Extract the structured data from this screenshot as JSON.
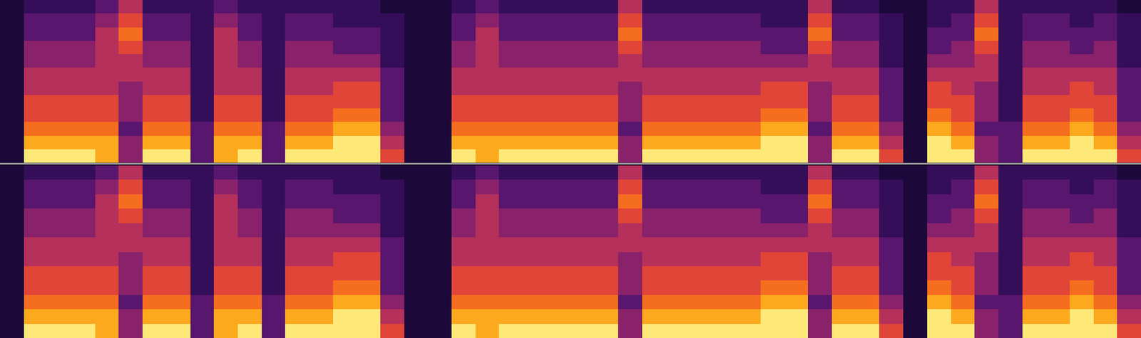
{
  "chart_data": [
    {
      "type": "heatmap",
      "tick_labels": false,
      "zlim": [
        0,
        9
      ],
      "cells": [
        [
          1,
          2,
          2,
          2,
          3,
          5,
          2,
          2,
          2,
          3,
          2,
          2,
          2,
          2,
          2,
          2,
          1,
          1,
          1,
          2,
          3,
          2,
          2,
          2,
          2,
          2,
          5,
          2,
          2,
          2,
          2,
          2,
          2,
          2,
          5,
          2,
          2,
          1,
          1,
          2,
          2,
          5,
          2,
          2,
          2,
          2,
          2,
          1
        ],
        [
          1,
          3,
          3,
          3,
          4,
          6,
          3,
          3,
          2,
          4,
          3,
          2,
          3,
          3,
          2,
          2,
          2,
          1,
          1,
          3,
          4,
          3,
          3,
          3,
          3,
          3,
          6,
          3,
          3,
          3,
          3,
          3,
          2,
          2,
          6,
          3,
          3,
          2,
          1,
          2,
          3,
          6,
          2,
          3,
          3,
          2,
          3,
          2
        ],
        [
          1,
          3,
          3,
          3,
          5,
          7,
          3,
          3,
          2,
          5,
          3,
          2,
          3,
          3,
          3,
          3,
          2,
          1,
          1,
          3,
          5,
          3,
          3,
          3,
          3,
          3,
          7,
          3,
          3,
          3,
          3,
          3,
          3,
          3,
          7,
          3,
          3,
          2,
          1,
          3,
          3,
          7,
          2,
          3,
          3,
          3,
          3,
          2
        ],
        [
          1,
          4,
          4,
          4,
          5,
          6,
          4,
          4,
          2,
          5,
          4,
          2,
          4,
          4,
          3,
          3,
          2,
          1,
          1,
          4,
          5,
          4,
          4,
          4,
          4,
          4,
          6,
          4,
          4,
          4,
          4,
          4,
          3,
          3,
          6,
          4,
          4,
          2,
          1,
          3,
          4,
          6,
          2,
          4,
          4,
          3,
          4,
          2
        ],
        [
          1,
          4,
          4,
          4,
          5,
          5,
          4,
          4,
          2,
          5,
          4,
          2,
          4,
          4,
          4,
          4,
          2,
          1,
          1,
          4,
          5,
          4,
          4,
          4,
          4,
          4,
          5,
          4,
          4,
          4,
          4,
          4,
          4,
          4,
          5,
          4,
          4,
          2,
          1,
          4,
          4,
          5,
          2,
          4,
          4,
          4,
          4,
          2
        ],
        [
          1,
          5,
          5,
          5,
          5,
          5,
          5,
          5,
          2,
          5,
          5,
          2,
          5,
          5,
          5,
          5,
          3,
          1,
          1,
          5,
          5,
          5,
          5,
          5,
          5,
          5,
          5,
          5,
          5,
          5,
          5,
          5,
          5,
          5,
          5,
          5,
          5,
          3,
          1,
          5,
          5,
          5,
          2,
          5,
          5,
          5,
          5,
          3
        ],
        [
          1,
          5,
          5,
          5,
          5,
          4,
          5,
          5,
          2,
          5,
          5,
          2,
          5,
          5,
          6,
          6,
          3,
          1,
          1,
          5,
          5,
          5,
          5,
          5,
          5,
          5,
          4,
          5,
          5,
          5,
          5,
          5,
          6,
          6,
          4,
          5,
          5,
          3,
          1,
          6,
          5,
          4,
          2,
          5,
          5,
          6,
          5,
          3
        ],
        [
          1,
          6,
          6,
          6,
          6,
          4,
          6,
          6,
          2,
          6,
          6,
          2,
          6,
          6,
          6,
          6,
          3,
          1,
          1,
          6,
          6,
          6,
          6,
          6,
          6,
          6,
          4,
          6,
          6,
          6,
          6,
          6,
          6,
          6,
          4,
          6,
          6,
          3,
          1,
          6,
          6,
          4,
          2,
          6,
          6,
          6,
          6,
          3
        ],
        [
          1,
          6,
          6,
          6,
          6,
          4,
          6,
          6,
          2,
          6,
          6,
          2,
          6,
          6,
          7,
          7,
          3,
          1,
          1,
          6,
          6,
          6,
          6,
          6,
          6,
          6,
          4,
          6,
          6,
          6,
          6,
          6,
          7,
          7,
          4,
          6,
          6,
          3,
          1,
          7,
          6,
          4,
          2,
          6,
          6,
          7,
          6,
          3
        ],
        [
          1,
          7,
          7,
          7,
          7,
          3,
          7,
          7,
          3,
          7,
          7,
          3,
          7,
          7,
          8,
          8,
          4,
          1,
          1,
          7,
          7,
          7,
          7,
          7,
          7,
          7,
          3,
          7,
          7,
          7,
          7,
          7,
          8,
          8,
          3,
          7,
          7,
          4,
          1,
          8,
          7,
          3,
          3,
          7,
          7,
          8,
          7,
          4
        ],
        [
          1,
          8,
          8,
          8,
          8,
          4,
          8,
          8,
          3,
          8,
          8,
          3,
          8,
          8,
          9,
          9,
          5,
          1,
          1,
          8,
          8,
          8,
          8,
          8,
          8,
          8,
          4,
          8,
          8,
          8,
          8,
          8,
          9,
          9,
          4,
          8,
          8,
          5,
          1,
          9,
          8,
          4,
          3,
          8,
          8,
          9,
          8,
          5
        ],
        [
          1,
          9,
          9,
          9,
          8,
          4,
          9,
          9,
          3,
          8,
          9,
          3,
          9,
          9,
          9,
          9,
          6,
          1,
          1,
          9,
          8,
          9,
          9,
          9,
          9,
          9,
          4,
          9,
          9,
          9,
          9,
          9,
          9,
          9,
          4,
          9,
          9,
          6,
          1,
          9,
          9,
          4,
          3,
          9,
          9,
          9,
          9,
          6
        ]
      ]
    },
    {
      "type": "heatmap",
      "tick_labels": false,
      "zlim": [
        0,
        9
      ],
      "cells": [
        [
          1,
          2,
          2,
          2,
          3,
          5,
          2,
          2,
          2,
          3,
          2,
          2,
          2,
          2,
          2,
          2,
          1,
          1,
          1,
          2,
          3,
          2,
          2,
          2,
          2,
          2,
          5,
          2,
          2,
          2,
          2,
          2,
          2,
          2,
          5,
          2,
          2,
          1,
          1,
          2,
          2,
          5,
          2,
          2,
          2,
          2,
          2,
          1
        ],
        [
          1,
          3,
          3,
          3,
          4,
          6,
          3,
          3,
          2,
          4,
          3,
          2,
          3,
          3,
          2,
          2,
          2,
          1,
          1,
          3,
          4,
          3,
          3,
          3,
          3,
          3,
          6,
          3,
          3,
          3,
          3,
          3,
          2,
          2,
          6,
          3,
          3,
          2,
          1,
          2,
          3,
          6,
          2,
          3,
          3,
          2,
          3,
          2
        ],
        [
          1,
          3,
          3,
          3,
          5,
          7,
          3,
          3,
          2,
          5,
          3,
          2,
          3,
          3,
          3,
          3,
          2,
          1,
          1,
          3,
          5,
          3,
          3,
          3,
          3,
          3,
          7,
          3,
          3,
          3,
          3,
          3,
          3,
          3,
          7,
          3,
          3,
          2,
          1,
          3,
          3,
          7,
          2,
          3,
          3,
          3,
          3,
          2
        ],
        [
          1,
          4,
          4,
          4,
          5,
          6,
          4,
          4,
          2,
          5,
          4,
          2,
          4,
          4,
          3,
          3,
          2,
          1,
          1,
          4,
          5,
          4,
          4,
          4,
          4,
          4,
          6,
          4,
          4,
          4,
          4,
          4,
          3,
          3,
          6,
          4,
          4,
          2,
          1,
          3,
          4,
          6,
          2,
          4,
          4,
          3,
          4,
          2
        ],
        [
          1,
          4,
          4,
          4,
          5,
          5,
          4,
          4,
          2,
          5,
          4,
          2,
          4,
          4,
          4,
          4,
          2,
          1,
          1,
          4,
          5,
          4,
          4,
          4,
          4,
          4,
          5,
          4,
          4,
          4,
          4,
          4,
          4,
          4,
          5,
          4,
          4,
          2,
          1,
          4,
          4,
          5,
          2,
          4,
          4,
          4,
          4,
          2
        ],
        [
          1,
          5,
          5,
          5,
          5,
          5,
          5,
          5,
          2,
          5,
          5,
          2,
          5,
          5,
          5,
          5,
          3,
          1,
          1,
          5,
          5,
          5,
          5,
          5,
          5,
          5,
          5,
          5,
          5,
          5,
          5,
          5,
          5,
          5,
          5,
          5,
          5,
          3,
          1,
          5,
          5,
          5,
          2,
          5,
          5,
          5,
          5,
          3
        ],
        [
          1,
          5,
          5,
          5,
          5,
          4,
          5,
          5,
          2,
          5,
          5,
          2,
          5,
          5,
          6,
          6,
          3,
          1,
          1,
          5,
          5,
          5,
          5,
          5,
          5,
          5,
          4,
          5,
          5,
          5,
          5,
          5,
          6,
          6,
          4,
          5,
          5,
          3,
          1,
          6,
          5,
          4,
          2,
          5,
          5,
          6,
          5,
          3
        ],
        [
          1,
          6,
          6,
          6,
          6,
          4,
          6,
          6,
          2,
          6,
          6,
          2,
          6,
          6,
          6,
          6,
          3,
          1,
          1,
          6,
          6,
          6,
          6,
          6,
          6,
          6,
          4,
          6,
          6,
          6,
          6,
          6,
          6,
          6,
          4,
          6,
          6,
          3,
          1,
          6,
          6,
          4,
          2,
          6,
          6,
          6,
          6,
          3
        ],
        [
          1,
          6,
          6,
          6,
          6,
          4,
          6,
          6,
          2,
          6,
          6,
          2,
          6,
          6,
          7,
          7,
          3,
          1,
          1,
          6,
          6,
          6,
          6,
          6,
          6,
          6,
          4,
          6,
          6,
          6,
          6,
          6,
          7,
          7,
          4,
          6,
          6,
          3,
          1,
          7,
          6,
          4,
          2,
          6,
          6,
          7,
          6,
          3
        ],
        [
          1,
          7,
          7,
          7,
          7,
          3,
          7,
          7,
          3,
          7,
          7,
          3,
          7,
          7,
          8,
          8,
          4,
          1,
          1,
          7,
          7,
          7,
          7,
          7,
          7,
          7,
          3,
          7,
          7,
          7,
          7,
          7,
          8,
          8,
          3,
          7,
          7,
          4,
          1,
          8,
          7,
          3,
          3,
          7,
          7,
          8,
          7,
          4
        ],
        [
          1,
          8,
          8,
          8,
          8,
          4,
          8,
          8,
          3,
          8,
          8,
          3,
          8,
          8,
          9,
          9,
          5,
          1,
          1,
          8,
          8,
          8,
          8,
          8,
          8,
          8,
          4,
          8,
          8,
          8,
          8,
          8,
          9,
          9,
          4,
          8,
          8,
          5,
          1,
          9,
          8,
          4,
          3,
          8,
          8,
          9,
          8,
          5
        ],
        [
          1,
          9,
          9,
          9,
          8,
          4,
          9,
          9,
          3,
          8,
          9,
          3,
          9,
          9,
          9,
          9,
          6,
          1,
          1,
          9,
          8,
          9,
          9,
          9,
          9,
          9,
          4,
          9,
          9,
          9,
          9,
          9,
          9,
          9,
          4,
          9,
          9,
          6,
          1,
          9,
          9,
          4,
          3,
          9,
          9,
          9,
          9,
          6
        ]
      ]
    }
  ]
}
